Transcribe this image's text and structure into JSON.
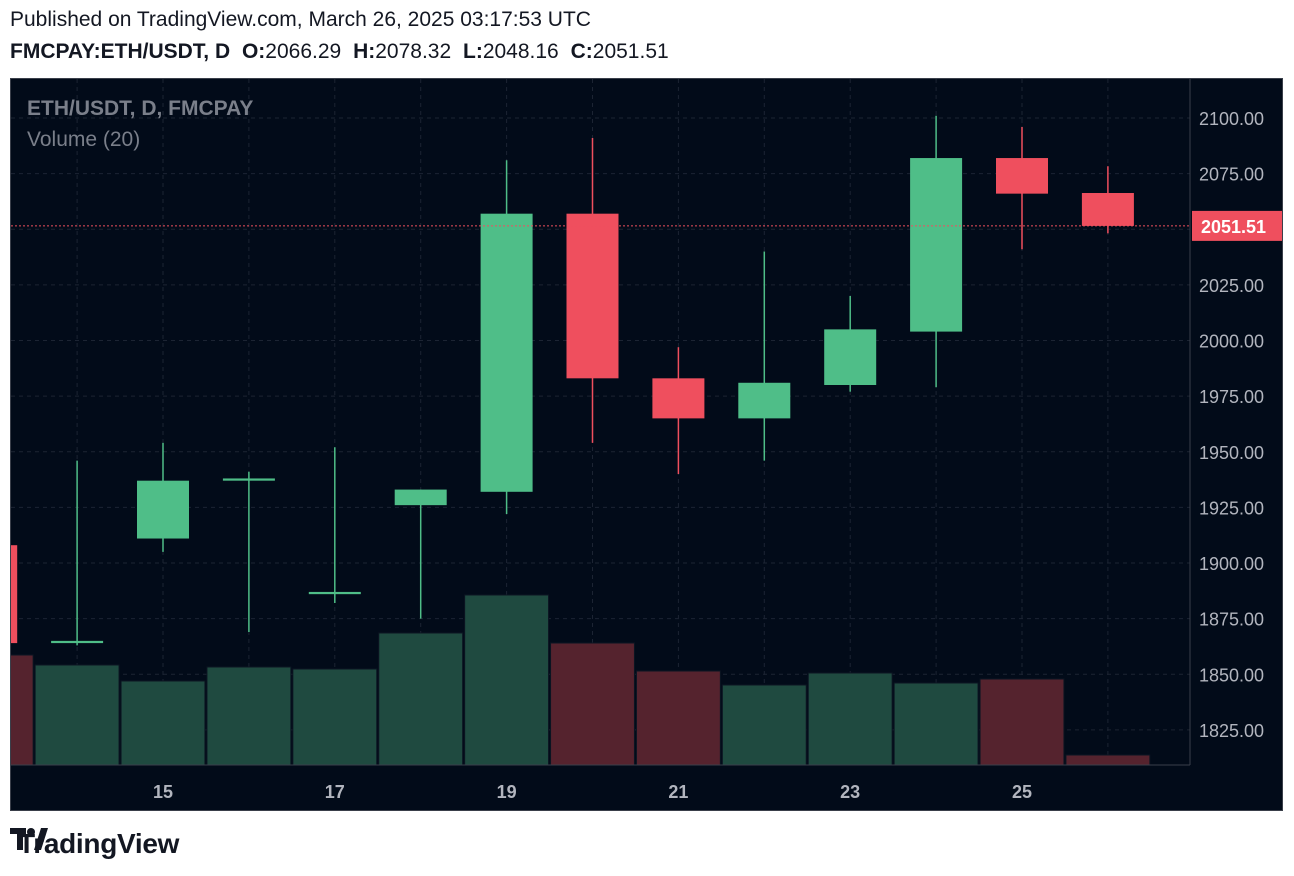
{
  "header": {
    "published": "Published on TradingView.com, March 26, 2025 03:17:53 UTC",
    "symbol": "FMCPAY:ETH/USDT, D",
    "ohlc": [
      {
        "key": "O:",
        "value": "2066.29"
      },
      {
        "key": "H:",
        "value": "2078.32"
      },
      {
        "key": "L:",
        "value": "2048.16"
      },
      {
        "key": "C:",
        "value": "2051.51"
      }
    ]
  },
  "legend": {
    "symbol": "ETH/USDT, D, FMCPAY",
    "volume": "Volume (20)"
  },
  "brand": {
    "name": "TradingView"
  },
  "colors": {
    "up": "#4fbe88",
    "down": "#ef4f5e",
    "volume_up": "#1f4a40",
    "volume_down": "#55232e",
    "background": "#020b19",
    "grid": "#1c2433",
    "axis_text": "#b2b5be",
    "price_line": "#ef4f5e"
  },
  "chart_data": {
    "type": "candlestick",
    "title": "ETH/USDT, D, FMCPAY",
    "x_tick_labels": [
      "15",
      "17",
      "19",
      "21",
      "23",
      "25"
    ],
    "y_tick_labels": [
      "2100.00",
      "2075.00",
      "2050.00",
      "2025.00",
      "2000.00",
      "1975.00",
      "1950.00",
      "1925.00",
      "1900.00",
      "1875.00",
      "1850.00",
      "1825.00"
    ],
    "ylim": [
      1808,
      2110
    ],
    "last_price": "2051.51",
    "last_price_value": 2051.51,
    "candles": [
      {
        "day": 13,
        "open": 1908,
        "high": 1908,
        "low": 1864,
        "close": 1864,
        "volume": 0.55
      },
      {
        "day": 14,
        "open": 1864,
        "high": 1946,
        "low": 1863,
        "close": 1865,
        "volume": 0.5
      },
      {
        "day": 15,
        "open": 1911,
        "high": 1954,
        "low": 1905,
        "close": 1937,
        "volume": 0.42
      },
      {
        "day": 16,
        "open": 1937,
        "high": 1941,
        "low": 1869,
        "close": 1938,
        "volume": 0.49
      },
      {
        "day": 17,
        "open": 1886,
        "high": 1952,
        "low": 1882,
        "close": 1887,
        "volume": 0.48
      },
      {
        "day": 18,
        "open": 1926,
        "high": 1933,
        "low": 1875,
        "close": 1933,
        "volume": 0.66
      },
      {
        "day": 19,
        "open": 1932,
        "high": 2081,
        "low": 1922,
        "close": 2057,
        "volume": 0.85
      },
      {
        "day": 20,
        "open": 2057,
        "high": 2091,
        "low": 1954,
        "close": 1983,
        "volume": 0.61
      },
      {
        "day": 21,
        "open": 1983,
        "high": 1997,
        "low": 1940,
        "close": 1965,
        "volume": 0.47
      },
      {
        "day": 22,
        "open": 1965,
        "high": 2040,
        "low": 1946,
        "close": 1981,
        "volume": 0.4
      },
      {
        "day": 23,
        "open": 1980,
        "high": 2020,
        "low": 1977,
        "close": 2005,
        "volume": 0.46
      },
      {
        "day": 24,
        "open": 2004,
        "high": 2101,
        "low": 1979,
        "close": 2082,
        "volume": 0.41
      },
      {
        "day": 25,
        "open": 2082,
        "high": 2096,
        "low": 2041,
        "close": 2066,
        "volume": 0.43
      },
      {
        "day": 26,
        "open": 2066.29,
        "high": 2078.32,
        "low": 2048.16,
        "close": 2051.51,
        "volume": 0.05
      }
    ]
  }
}
